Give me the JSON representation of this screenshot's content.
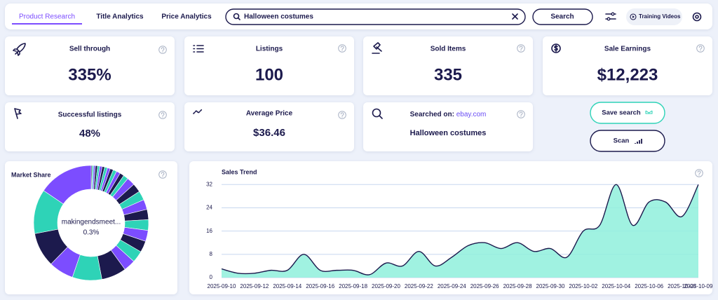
{
  "nav": {
    "tabs": [
      "Product Research",
      "Title Analytics",
      "Price Analytics"
    ],
    "search_query": "Halloween costumes",
    "search_button": "Search",
    "training_videos": "Training Videos"
  },
  "stats": [
    {
      "title": "Sell through",
      "value": "335%"
    },
    {
      "title": "Listings",
      "value": "100"
    },
    {
      "title": "Sold Items",
      "value": "335"
    },
    {
      "title": "Sale Earnings",
      "value": "$12,223"
    },
    {
      "title": "Successful listings",
      "value": "48%"
    },
    {
      "title": "Average Price",
      "value": "$36.46"
    }
  ],
  "searched_on": {
    "label": "Searched on:",
    "site": "ebay.com",
    "query": "Halloween costumes"
  },
  "buttons": [
    "Save search",
    "Scan"
  ],
  "chart_data": [
    {
      "type": "pie",
      "title": "Market Share",
      "center_label": "makingendsmeet...",
      "center_value": "0.3%",
      "values": [
        0.3,
        0.4,
        0.5,
        0.6,
        0.6,
        0.7,
        0.7,
        0.8,
        0.8,
        0.9,
        1,
        1.1,
        1.2,
        1.4,
        2.3,
        2.5,
        2.6,
        2.8,
        2.9,
        3,
        3.1,
        3.2,
        3.3,
        3.3,
        7,
        8.3,
        7,
        9.7,
        12.5,
        15.5
      ],
      "palette": [
        "#1c1a4d",
        "#2ed3b7",
        "#7c4dff"
      ]
    },
    {
      "type": "line",
      "title": "Sales Trend",
      "x": [
        "2025-09-10",
        null,
        "2025-09-12",
        null,
        "2025-09-14",
        null,
        "2025-09-16",
        null,
        "2025-09-18",
        null,
        "2025-09-20",
        null,
        "2025-09-22",
        null,
        "2025-09-24",
        null,
        "2025-09-26",
        null,
        "2025-09-28",
        null,
        "2025-09-30",
        null,
        "2025-10-02",
        null,
        "2025-10-04",
        null,
        "2025-10-06",
        null,
        "2025-10-08",
        "2025-10-09"
      ],
      "values": [
        3,
        1.5,
        1.5,
        2.5,
        2.5,
        8,
        2.5,
        2.5,
        2.5,
        1,
        5,
        4,
        9,
        4,
        7,
        11,
        12,
        10,
        12,
        9,
        10,
        7,
        16,
        18,
        32,
        18,
        26,
        26,
        21,
        32
      ],
      "color": "#1c1a4d",
      "fill_color": "#8ff0dc",
      "ylim": [
        0,
        34
      ],
      "yticks": [
        0,
        8,
        16,
        24,
        32
      ],
      "grid": true
    }
  ]
}
